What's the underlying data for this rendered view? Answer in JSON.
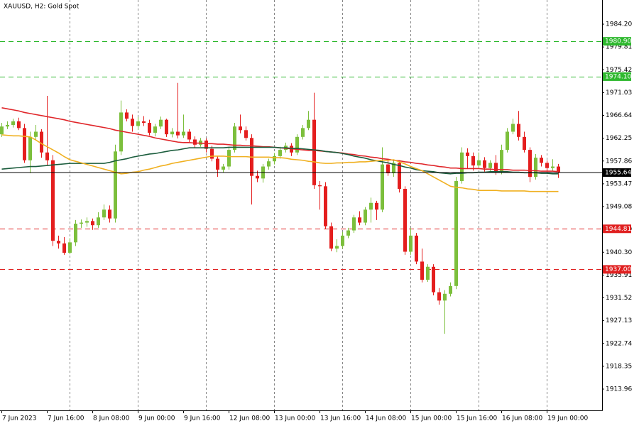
{
  "chart_data": {
    "type": "candlestick",
    "title": "XAUUSD, H2:  Gold Spot",
    "categories": [
      "7 Jun 2023",
      null,
      null,
      null,
      null,
      null,
      null,
      null,
      "7 Jun 16:00",
      null,
      null,
      null,
      null,
      null,
      null,
      null,
      "8 Jun 08:00",
      null,
      null,
      null,
      null,
      null,
      null,
      null,
      "9 Jun 00:00",
      null,
      null,
      null,
      null,
      null,
      null,
      null,
      "9 Jun 16:00",
      null,
      null,
      null,
      null,
      null,
      null,
      null,
      "12 Jun 08:00",
      null,
      null,
      null,
      null,
      null,
      null,
      null,
      "13 Jun 00:00",
      null,
      null,
      null,
      null,
      null,
      null,
      null,
      "13 Jun 16:00",
      null,
      null,
      null,
      null,
      null,
      null,
      null,
      "14 Jun 08:00",
      null,
      null,
      null,
      null,
      null,
      null,
      null,
      "15 Jun 00:00",
      null,
      null,
      null,
      null,
      null,
      null,
      null,
      "15 Jun 16:00",
      null,
      null,
      null,
      null,
      null,
      null,
      null,
      "16 Jun 08:00",
      null,
      null,
      null,
      null,
      null,
      null,
      null,
      "19 Jun 00:00",
      null,
      null
    ],
    "candles": {
      "up_color": "#7cbf3c",
      "down_color": "#e41e1e",
      "open": [
        1963.0,
        1964.5,
        1964.8,
        1965.5,
        1964.2,
        1958.0,
        1962.5,
        1963.5,
        1959.5,
        1958.0,
        1942.5,
        1942.0,
        1940.2,
        1942.2,
        1945.8,
        1946.0,
        1946.3,
        1945.5,
        1947.0,
        1948.5,
        1946.8,
        1959.7,
        1967.2,
        1966.0,
        1964.6,
        1965.5,
        1965.2,
        1963.3,
        1964.5,
        1965.8,
        1963.0,
        1963.5,
        1962.8,
        1963.5,
        1962.0,
        1961.0,
        1961.8,
        1960.2,
        1958.3,
        1956.2,
        1956.8,
        1960.0,
        1964.5,
        1963.8,
        1962.3,
        1955.0,
        1954.5,
        1956.8,
        1957.8,
        1958.8,
        1960.0,
        1960.8,
        1959.5,
        1962.5,
        1964.2,
        1965.8,
        1953.2,
        1953.0,
        1945.3,
        1941.0,
        1941.5,
        1943.5,
        1944.5,
        1947.0,
        1946.0,
        1948.5,
        1949.8,
        1948.5,
        1957.2,
        1955.5,
        1957.5,
        1952.5,
        1940.4,
        1943.5,
        1938.5,
        1935.0,
        1937.5,
        1932.6,
        1931.0,
        1932.3,
        1933.8,
        1954.0,
        1959.5,
        1958.8,
        1957.0,
        1958.0,
        1956.5,
        1957.5,
        1955.8,
        1960.0,
        1963.5,
        1965.0,
        1962.5,
        1960.0,
        1954.8,
        1958.5,
        1957.5,
        1956.5,
        1956.8
      ],
      "high": [
        1965.2,
        1965.5,
        1966.0,
        1966.2,
        1965.0,
        1963.5,
        1964.8,
        1964.0,
        1970.4,
        1959.0,
        1943.5,
        1943.2,
        1943.0,
        1946.5,
        1946.6,
        1947.0,
        1946.8,
        1948.0,
        1949.5,
        1949.3,
        1961.0,
        1969.5,
        1967.8,
        1966.8,
        1966.3,
        1966.5,
        1965.8,
        1965.0,
        1966.4,
        1966.0,
        1964.2,
        1972.9,
        1966.8,
        1964.0,
        1962.6,
        1962.3,
        1962.2,
        1960.8,
        1958.8,
        1957.3,
        1960.6,
        1965.2,
        1966.8,
        1964.5,
        1963.0,
        1956.0,
        1957.3,
        1958.3,
        1959.4,
        1960.6,
        1961.4,
        1961.3,
        1963.0,
        1964.8,
        1967.5,
        1971.0,
        1954.0,
        1953.8,
        1946.0,
        1942.8,
        1944.2,
        1945.0,
        1947.5,
        1948.2,
        1949.0,
        1950.8,
        1950.2,
        1960.5,
        1958.0,
        1958.0,
        1958.0,
        1953.0,
        1945.0,
        1944.0,
        1941.0,
        1938.0,
        1938.0,
        1933.4,
        1933.0,
        1934.5,
        1954.8,
        1960.5,
        1960.3,
        1959.5,
        1959.5,
        1958.6,
        1958.0,
        1959.0,
        1961.0,
        1964.2,
        1966.0,
        1967.5,
        1963.5,
        1960.5,
        1959.2,
        1959.0,
        1958.0,
        1958.2,
        1957.3
      ],
      "low": [
        1962.5,
        1964.0,
        1964.3,
        1963.8,
        1957.5,
        1955.5,
        1962.0,
        1958.5,
        1957.0,
        1941.5,
        1941.0,
        1939.8,
        1939.9,
        1941.5,
        1945.0,
        1945.2,
        1944.6,
        1945.0,
        1946.5,
        1946.0,
        1946.0,
        1959.0,
        1965.5,
        1963.5,
        1963.9,
        1964.6,
        1962.8,
        1962.6,
        1964.0,
        1962.5,
        1962.4,
        1962.2,
        1962.3,
        1961.5,
        1960.5,
        1960.6,
        1959.5,
        1957.8,
        1954.8,
        1955.6,
        1956.2,
        1959.5,
        1963.2,
        1961.8,
        1949.5,
        1953.8,
        1953.7,
        1956.2,
        1957.2,
        1958.3,
        1959.5,
        1958.8,
        1959.0,
        1962.0,
        1963.8,
        1952.5,
        1948.5,
        1944.8,
        1940.5,
        1940.3,
        1941.0,
        1943.0,
        1944.0,
        1945.5,
        1945.5,
        1946.0,
        1946.5,
        1948.0,
        1955.0,
        1954.8,
        1951.8,
        1939.8,
        1939.8,
        1938.0,
        1934.5,
        1934.6,
        1932.0,
        1930.2,
        1924.6,
        1931.8,
        1933.2,
        1953.5,
        1956.4,
        1956.0,
        1956.5,
        1955.8,
        1955.6,
        1955.2,
        1955.3,
        1959.5,
        1963.0,
        1961.8,
        1959.5,
        1953.8,
        1954.3,
        1956.8,
        1955.8,
        1956.0,
        1954.6
      ],
      "close": [
        1964.5,
        1964.8,
        1965.5,
        1964.2,
        1958.0,
        1962.5,
        1963.5,
        1959.5,
        1958.0,
        1942.5,
        1942.0,
        1940.2,
        1942.2,
        1945.8,
        1946.0,
        1946.3,
        1945.5,
        1947.0,
        1948.5,
        1946.8,
        1959.7,
        1967.2,
        1966.0,
        1964.6,
        1965.5,
        1965.2,
        1963.3,
        1964.5,
        1965.8,
        1963.0,
        1963.5,
        1962.8,
        1963.5,
        1962.0,
        1961.0,
        1961.8,
        1960.2,
        1958.3,
        1956.2,
        1956.8,
        1960.0,
        1964.5,
        1963.8,
        1962.3,
        1955.0,
        1954.5,
        1956.8,
        1957.8,
        1958.8,
        1960.0,
        1960.8,
        1959.5,
        1962.5,
        1964.2,
        1965.8,
        1953.2,
        1953.0,
        1945.3,
        1941.0,
        1941.5,
        1943.5,
        1944.5,
        1947.0,
        1946.0,
        1948.5,
        1949.8,
        1948.5,
        1957.2,
        1955.5,
        1957.5,
        1952.5,
        1940.4,
        1943.5,
        1938.5,
        1935.0,
        1937.5,
        1932.6,
        1931.0,
        1932.3,
        1933.8,
        1954.0,
        1959.5,
        1958.8,
        1957.0,
        1958.0,
        1956.5,
        1957.5,
        1955.8,
        1960.0,
        1963.5,
        1965.0,
        1962.5,
        1960.0,
        1954.8,
        1958.5,
        1957.5,
        1956.5,
        1956.8,
        1955.64
      ]
    },
    "lines": [
      {
        "color": "#e0262a",
        "values": [
          1968.1,
          1967.9,
          1967.7,
          1967.5,
          1967.2,
          1967.0,
          1966.8,
          1966.6,
          1966.4,
          1966.2,
          1966.0,
          1965.8,
          1965.5,
          1965.3,
          1965.1,
          1964.9,
          1964.7,
          1964.5,
          1964.3,
          1964.1,
          1963.8,
          1963.6,
          1963.4,
          1963.2,
          1963.0,
          1962.8,
          1962.6,
          1962.3,
          1962.1,
          1961.9,
          1961.7,
          1961.5,
          1961.4,
          1961.4,
          1961.3,
          1961.3,
          1961.2,
          1961.2,
          1961.1,
          1961.1,
          1961.0,
          1960.9,
          1960.9,
          1960.8,
          1960.8,
          1960.7,
          1960.6,
          1960.6,
          1960.5,
          1960.4,
          1960.3,
          1960.2,
          1960.1,
          1960.0,
          1959.9,
          1959.9,
          1959.8,
          1959.7,
          1959.6,
          1959.5,
          1959.4,
          1959.2,
          1959.1,
          1958.9,
          1958.8,
          1958.6,
          1958.5,
          1958.3,
          1958.2,
          1958.0,
          1957.9,
          1957.7,
          1957.6,
          1957.4,
          1957.3,
          1957.1,
          1957.0,
          1956.8,
          1956.7,
          1956.5,
          1956.5,
          1956.4,
          1956.4,
          1956.4,
          1956.4,
          1956.3,
          1956.3,
          1956.2,
          1956.2,
          1956.2,
          1956.1,
          1956.1,
          1956.1,
          1956.0,
          1956.0,
          1955.9,
          1955.9,
          1955.9,
          1955.8
        ]
      },
      {
        "color": "#1a5c3c",
        "values": [
          1956.3,
          1956.4,
          1956.5,
          1956.6,
          1956.7,
          1956.8,
          1956.8,
          1956.9,
          1957.0,
          1957.1,
          1957.2,
          1957.3,
          1957.4,
          1957.4,
          1957.4,
          1957.4,
          1957.4,
          1957.4,
          1957.4,
          1957.6,
          1957.9,
          1958.1,
          1958.3,
          1958.6,
          1958.8,
          1959.0,
          1959.2,
          1959.3,
          1959.5,
          1959.7,
          1959.9,
          1960.0,
          1960.2,
          1960.4,
          1960.4,
          1960.4,
          1960.4,
          1960.4,
          1960.4,
          1960.4,
          1960.5,
          1960.5,
          1960.5,
          1960.5,
          1960.5,
          1960.5,
          1960.5,
          1960.5,
          1960.5,
          1960.4,
          1960.4,
          1960.3,
          1960.3,
          1960.2,
          1960.1,
          1960.0,
          1959.9,
          1959.7,
          1959.6,
          1959.5,
          1959.3,
          1959.1,
          1958.8,
          1958.6,
          1958.4,
          1958.1,
          1957.9,
          1957.7,
          1957.5,
          1957.2,
          1957.0,
          1956.7,
          1956.5,
          1956.2,
          1956.0,
          1955.9,
          1955.8,
          1955.6,
          1955.5,
          1955.4,
          1955.5,
          1955.5,
          1955.6,
          1955.6,
          1955.7,
          1955.7,
          1955.8,
          1955.8,
          1955.8,
          1955.8,
          1955.7,
          1955.7,
          1955.6,
          1955.6,
          1955.6,
          1955.5,
          1955.5,
          1955.4,
          1955.4
        ]
      },
      {
        "color": "#f0b020",
        "values": [
          1962.9,
          1962.8,
          1962.7,
          1962.7,
          1962.6,
          1962.5,
          1961.9,
          1961.2,
          1960.6,
          1960.0,
          1959.4,
          1958.7,
          1958.1,
          1957.8,
          1957.5,
          1957.2,
          1956.9,
          1956.6,
          1956.3,
          1956.0,
          1955.7,
          1955.4,
          1955.5,
          1955.7,
          1955.8,
          1956.1,
          1956.3,
          1956.6,
          1956.9,
          1957.1,
          1957.4,
          1957.6,
          1957.8,
          1958.0,
          1958.2,
          1958.4,
          1958.6,
          1958.8,
          1958.8,
          1958.8,
          1958.7,
          1958.7,
          1958.7,
          1958.7,
          1958.6,
          1958.6,
          1958.6,
          1958.6,
          1958.5,
          1958.5,
          1958.4,
          1958.2,
          1958.1,
          1958.0,
          1957.8,
          1957.7,
          1957.5,
          1957.4,
          1957.4,
          1957.5,
          1957.5,
          1957.6,
          1957.6,
          1957.7,
          1957.7,
          1957.8,
          1957.9,
          1958.0,
          1958.0,
          1958.1,
          1957.7,
          1957.3,
          1956.8,
          1956.4,
          1956.0,
          1955.4,
          1954.8,
          1954.2,
          1953.6,
          1953.0,
          1952.8,
          1952.7,
          1952.5,
          1952.4,
          1952.2,
          1952.2,
          1952.2,
          1952.2,
          1952.1,
          1952.1,
          1952.1,
          1952.1,
          1952.1,
          1952.0,
          1952.0,
          1952.0,
          1952.0,
          1952.0,
          1952.0
        ]
      }
    ],
    "levels": [
      {
        "value": 1980.9,
        "label": "1980.90",
        "color": "#2db82d"
      },
      {
        "value": 1974.1,
        "label": "1974.10",
        "color": "#2db82d"
      },
      {
        "value": 1944.81,
        "color": "#e02020"
      },
      {
        "value": 1937.0,
        "label": "1937.00",
        "color": "#e02020"
      }
    ],
    "price_line": 1955.64,
    "ylim": [
      1909.86,
      1988.85
    ],
    "yticks": [
      {
        "value": 1984.2,
        "label": "1984.20"
      },
      1979.81,
      1975.42,
      1971.03,
      1966.64,
      1962.25,
      1957.86,
      1953.47,
      1949.08,
      1944.69,
      {
        "value": 1940.3,
        "label": "1940.30"
      },
      1935.91,
      1931.52,
      1927.13,
      1922.74,
      1918.35,
      1913.96
    ]
  }
}
